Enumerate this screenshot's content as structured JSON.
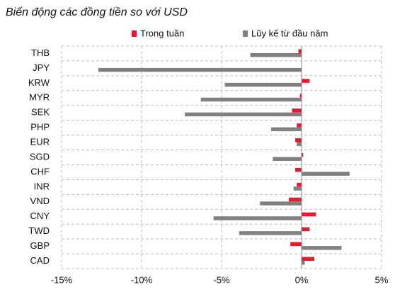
{
  "chart_data": {
    "type": "hbar",
    "title": "Biến động các đồng tiền so với USD",
    "categories": [
      "THB",
      "JPY",
      "KRW",
      "MYR",
      "SEK",
      "PHP",
      "EUR",
      "SGD",
      "CHF",
      "INR",
      "VND",
      "CNY",
      "TWD",
      "GBP",
      "CAD"
    ],
    "series": [
      {
        "name": "Trong tuần",
        "color": "#e8192c",
        "values": [
          -0.2,
          0,
          0.5,
          -0.1,
          -0.6,
          -0.3,
          -0.4,
          0.1,
          -0.4,
          -0.3,
          -0.8,
          0.9,
          0.5,
          -0.7,
          0.8
        ]
      },
      {
        "name": "Lũy kế từ đầu năm",
        "color": "#808080",
        "values": [
          -3.2,
          -12.7,
          -4.8,
          -6.3,
          -7.3,
          -1.9,
          -0.3,
          -1.8,
          3.0,
          -0.5,
          -2.6,
          -5.5,
          -3.9,
          2.5,
          0.2
        ]
      }
    ],
    "xlim": [
      -15,
      5
    ],
    "xticks": [
      {
        "value": -15,
        "label": "-15%"
      },
      {
        "value": -10,
        "label": "-10%"
      },
      {
        "value": -5,
        "label": "-5%"
      },
      {
        "value": 0,
        "label": "0%"
      },
      {
        "value": 5,
        "label": "5%"
      }
    ],
    "grid": true
  }
}
